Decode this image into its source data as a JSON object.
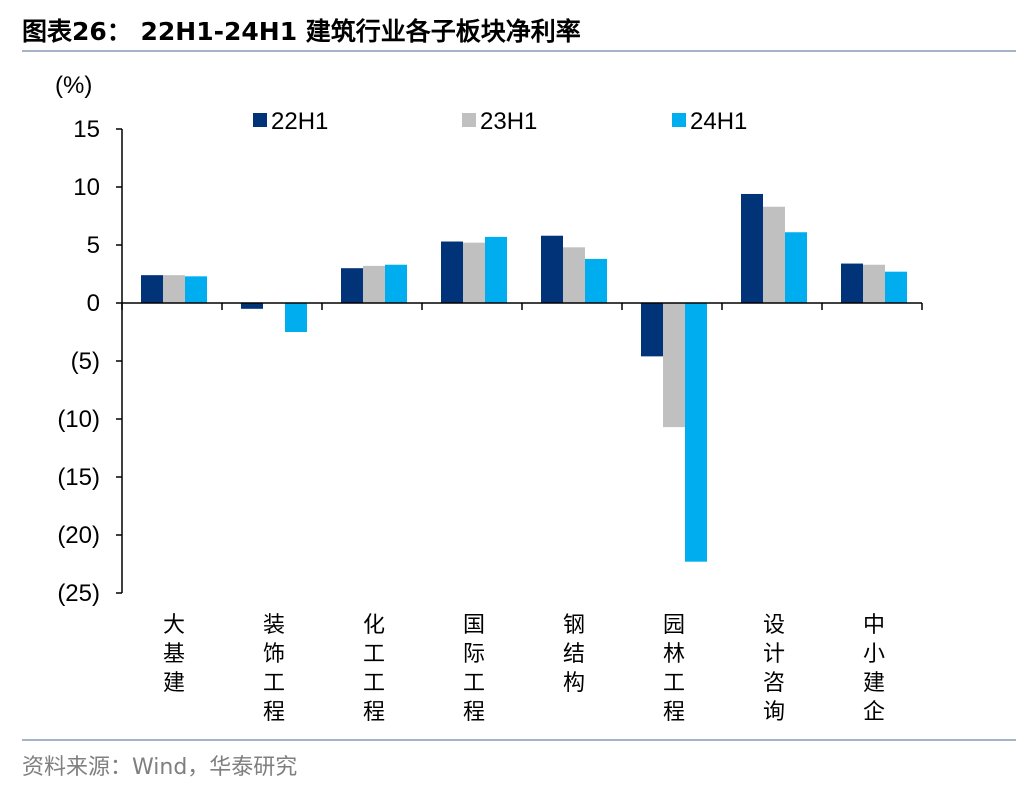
{
  "title": "图表26：  22H1-24H1 建筑行业各子板块净利率",
  "source": "资料来源：Wind，华泰研究",
  "chart_data": {
    "type": "bar",
    "unit_label": "(%)",
    "categories": [
      "大基建",
      "装饰工程",
      "化工工程",
      "国际工程",
      "钢结构",
      "园林工程",
      "设计咨询",
      "中小建企"
    ],
    "series": [
      {
        "name": "22H1",
        "color": "#003378",
        "values": [
          2.4,
          -0.5,
          3.0,
          5.3,
          5.8,
          -4.6,
          9.4,
          3.4
        ]
      },
      {
        "name": "23H1",
        "color": "#c0c0c0",
        "values": [
          2.4,
          0.0,
          3.2,
          5.2,
          4.8,
          -10.7,
          8.3,
          3.3
        ]
      },
      {
        "name": "24H1",
        "color": "#00aeef",
        "values": [
          2.3,
          -2.5,
          3.3,
          5.7,
          3.8,
          -22.3,
          6.1,
          2.7
        ]
      }
    ],
    "yticks": [
      15,
      10,
      5,
      0,
      -5,
      -10,
      -15,
      -20,
      -25
    ],
    "ytick_labels": [
      "15",
      "10",
      "5",
      "0",
      "(5)",
      "(10)",
      "(15)",
      "(20)",
      "(25)"
    ],
    "ylim": [
      -25,
      15
    ],
    "legend_position": "top",
    "grid": false
  }
}
